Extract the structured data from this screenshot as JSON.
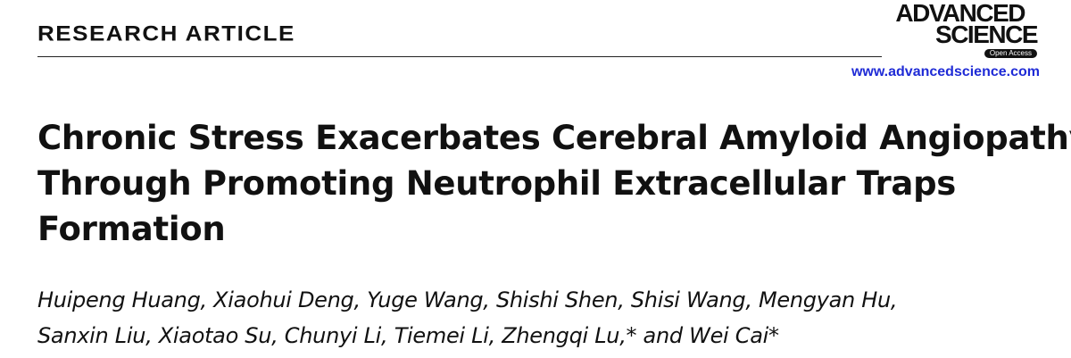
{
  "header": {
    "section": "RESEARCH ARTICLE",
    "journal_line1": "ADVANCED",
    "journal_line2": "SCIENCE",
    "badge": "Open Access",
    "url": "www.advancedscience.com"
  },
  "article": {
    "title_lines": [
      "Chronic Stress Exacerbates Cerebral Amyloid Angiopathy",
      "Through Promoting Neutrophil Extracellular Traps",
      "Formation"
    ],
    "author_lines": [
      "Huipeng Huang, Xiaohui Deng, Yuge Wang, Shishi Shen, Shisi Wang, Mengyan Hu,",
      "Sanxin Liu, Xiaotao Su, Chunyi Li, Tiemei Li, Zhengqi Lu,* and Wei Cai*"
    ]
  }
}
